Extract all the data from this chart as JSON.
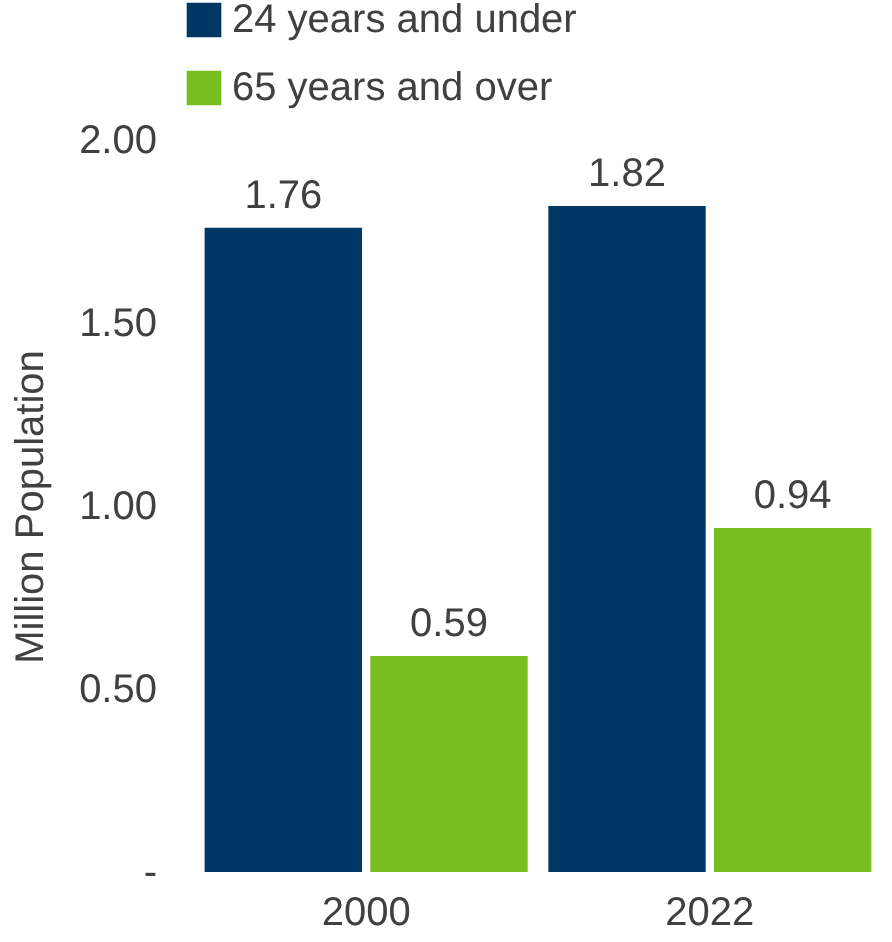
{
  "chart_data": {
    "type": "bar",
    "ylabel": "Million Population",
    "categories": [
      "2000",
      "2022"
    ],
    "series": [
      {
        "name": "24 years and under",
        "color": "#003865",
        "values": [
          1.76,
          1.82
        ]
      },
      {
        "name": "65 years and over",
        "color": "#78be20",
        "values": [
          0.59,
          0.94
        ]
      }
    ],
    "ylim": [
      0,
      2
    ],
    "yticks": [
      {
        "value": 0,
        "label": "-"
      },
      {
        "value": 0.5,
        "label": "0.50"
      },
      {
        "value": 1,
        "label": "1.00"
      },
      {
        "value": 1.5,
        "label": "1.50"
      },
      {
        "value": 2,
        "label": "2.00"
      }
    ],
    "data_labels": true,
    "legend": "top left"
  }
}
